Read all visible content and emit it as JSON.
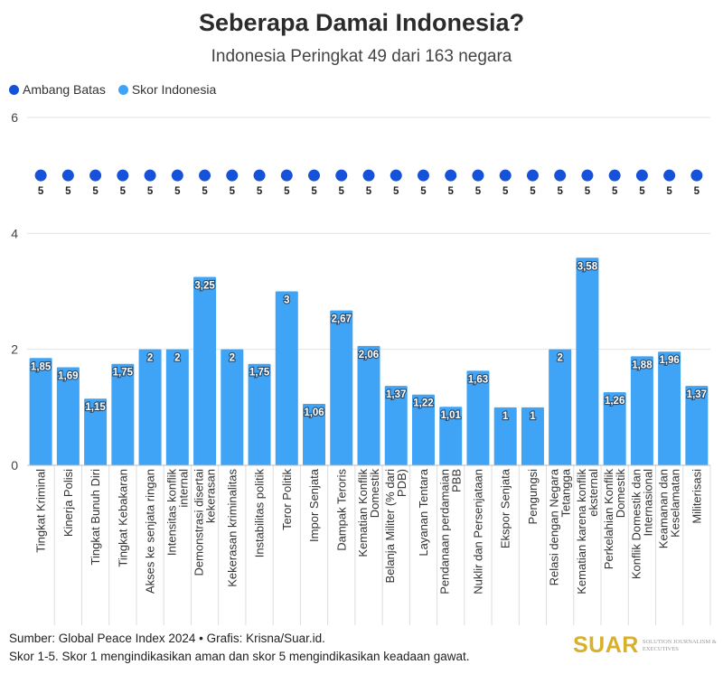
{
  "header": {
    "title": "Seberapa Damai Indonesia?",
    "subtitle": "Indonesia Peringkat 49 dari 163 negara"
  },
  "legend": [
    {
      "label": "Ambang Batas",
      "color": "#1551d9"
    },
    {
      "label": "Skor Indonesia",
      "color": "#3fa4f5"
    }
  ],
  "footer": {
    "source": "Sumber: Global Peace Index 2024 • Grafis: Krisna/Suar.id.",
    "note": "Skor 1-5. Skor 1 mengindikasikan aman dan skor 5 mengindikasikan keadaan gawat.",
    "logo_word": "SUAR",
    "logo_tagline": "SOLUTION JOURNALISM & EXECUTIVES"
  },
  "chart_data": {
    "type": "bar",
    "title": "Seberapa Damai Indonesia?",
    "subtitle": "Indonesia Peringkat 49 dari 163 negara",
    "ylim": [
      0,
      6
    ],
    "yticks": [
      "0",
      "2",
      "4",
      "6"
    ],
    "grid": true,
    "legend_position": "top-left",
    "categories": [
      "Tingkat Kriminal",
      "Kinerja Polisi",
      "Tingkat Bunuh Diri",
      "Tingkat Kebakaran",
      "Akses ke senjata ringan",
      "Intensitas konflik internal",
      "Demonstrasi disertai kekerasan",
      "Kekerasan kriminalitas",
      "Instabilitas politik",
      "Teror Politik",
      "Impor Senjata",
      "Dampak Teroris",
      "Kematian Konflik Domestik",
      "Belanja Militer (% dari PDB)",
      "Layanan Tentara",
      "Pendanaan perdamaian PBB",
      "Nuklir dan Persenjataan",
      "Ekspor Senjata",
      "Pengungsi",
      "Relasi dengan Negara Tetangga",
      "Kematian karena konflik eksternal",
      "Perkelahian Konflik Domestik",
      "Konflik Domestik dan Internasional",
      "Keamanan dan Keselamatan",
      "Militerisasi"
    ],
    "category_lines": [
      [
        "Tingkat Kriminal"
      ],
      [
        "Kinerja Polisi"
      ],
      [
        "Tingkat Bunuh Diri"
      ],
      [
        "Tingkat Kebakaran"
      ],
      [
        "Akses ke senjata ringan"
      ],
      [
        "Intensitas konflik",
        "internal"
      ],
      [
        "Demonstrasi disertai",
        "kekerasan"
      ],
      [
        "Kekerasan kriminalitas"
      ],
      [
        "Instabilitas politik"
      ],
      [
        "Teror Politik"
      ],
      [
        "Impor Senjata"
      ],
      [
        "Dampak Teroris"
      ],
      [
        "Kematian Konflik",
        "Domestik"
      ],
      [
        "Belanja Militer (% dari",
        "PDB)"
      ],
      [
        "Layanan Tentara"
      ],
      [
        "Pendanaan perdamaian",
        "PBB"
      ],
      [
        "Nuklir dan Persenjataan"
      ],
      [
        "Ekspor Senjata"
      ],
      [
        "Pengungsi"
      ],
      [
        "Relasi dengan Negara",
        "Tetangga"
      ],
      [
        "Kematian karena konflik",
        "eksternal"
      ],
      [
        "Perkelahian Konflik",
        "Domestik"
      ],
      [
        "Konflik Domestik dan",
        "Internasional"
      ],
      [
        "Keamanan dan",
        "Keselamatan"
      ],
      [
        "Militerisasi"
      ]
    ],
    "series": [
      {
        "name": "Ambang Batas",
        "type": "scatter",
        "color": "#1551d9",
        "values": [
          5,
          5,
          5,
          5,
          5,
          5,
          5,
          5,
          5,
          5,
          5,
          5,
          5,
          5,
          5,
          5,
          5,
          5,
          5,
          5,
          5,
          5,
          5,
          5,
          5
        ],
        "labels": [
          "5",
          "5",
          "5",
          "5",
          "5",
          "5",
          "5",
          "5",
          "5",
          "5",
          "5",
          "5",
          "5",
          "5",
          "5",
          "5",
          "5",
          "5",
          "5",
          "5",
          "5",
          "5",
          "5",
          "5",
          "5"
        ]
      },
      {
        "name": "Skor Indonesia",
        "type": "bar",
        "color": "#3fa4f5",
        "values": [
          1.85,
          1.69,
          1.15,
          1.75,
          2,
          2,
          3.25,
          2,
          1.75,
          3,
          1.06,
          2.67,
          2.06,
          1.37,
          1.22,
          1.01,
          1.63,
          1,
          1,
          2,
          3.58,
          1.26,
          1.88,
          1.96,
          1.37
        ],
        "labels": [
          "1,85",
          "1,69",
          "1,15",
          "1,75",
          "2",
          "2",
          "3,25",
          "2",
          "1,75",
          "3",
          "1,06",
          "2,67",
          "2,06",
          "1,37",
          "1,22",
          "1,01",
          "1,63",
          "1",
          "1",
          "2",
          "3,58",
          "1,26",
          "1,88",
          "1,96",
          "1,37"
        ]
      }
    ]
  }
}
